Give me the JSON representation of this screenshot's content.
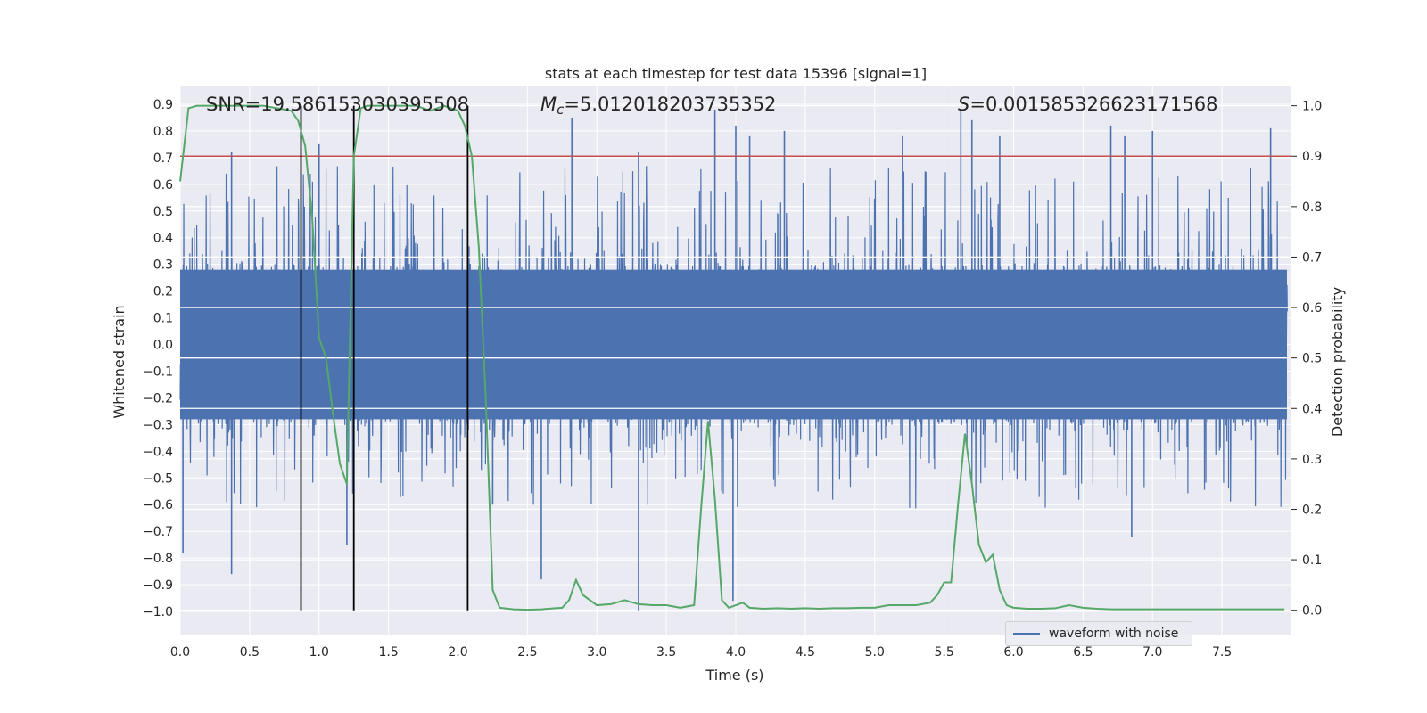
{
  "chart_data": {
    "type": "line",
    "title": "stats at each timestep for test data 15396 [signal=1]",
    "xlabel": "Time (s)",
    "ylabel_left": "Whitened strain",
    "ylabel_right": "Detection probability",
    "xlim": [
      0.0,
      8.0
    ],
    "ylim_left": [
      -1.09,
      0.97
    ],
    "ylim_right": [
      -0.05,
      1.04
    ],
    "x_ticks": [
      "0.0",
      "0.5",
      "1.0",
      "1.5",
      "2.0",
      "2.5",
      "3.0",
      "3.5",
      "4.0",
      "4.5",
      "5.0",
      "5.5",
      "6.0",
      "6.5",
      "7.0",
      "7.5"
    ],
    "y_left_ticks": [
      "0.9",
      "0.8",
      "0.7",
      "0.6",
      "0.5",
      "0.4",
      "0.3",
      "0.2",
      "0.1",
      "0.0",
      "−0.1",
      "−0.2",
      "−0.3",
      "−0.4",
      "−0.5",
      "−0.6",
      "−0.7",
      "−0.8",
      "−0.9",
      "−1.0"
    ],
    "y_right_ticks": [
      "1.0",
      "0.9",
      "0.8",
      "0.7",
      "0.6",
      "0.5",
      "0.4",
      "0.3",
      "0.2",
      "0.1",
      "0.0"
    ],
    "annotations": {
      "snr": "SNR=19.586153030395508",
      "mc_symbol": "M",
      "mc_sub": "c",
      "mc_value": "=5.012018203735352",
      "s_symbol": "S",
      "s_value": "=0.001585326623171568"
    },
    "threshold": {
      "value": 0.9,
      "axis": "right",
      "color": "#c44e52"
    },
    "vertical_lines": [
      0.87,
      1.25,
      2.07
    ],
    "legend": {
      "entries": [
        "waveform with noise"
      ],
      "placement": "lower-right"
    },
    "grid": true,
    "series": [
      {
        "name": "waveform with noise",
        "axis": "left",
        "color": "#4c72b0",
        "noise_envelope": {
          "core_lo": -0.3,
          "core_hi": 0.3,
          "typical_peak_hi": 0.55,
          "typical_peak_lo": -0.5
        },
        "extreme_spikes": [
          [
            0.02,
            -0.78
          ],
          [
            0.37,
            0.72
          ],
          [
            0.37,
            -0.86
          ],
          [
            1.0,
            0.75
          ],
          [
            1.2,
            -0.75
          ],
          [
            2.25,
            -0.6
          ],
          [
            2.6,
            -0.88
          ],
          [
            2.82,
            0.85
          ],
          [
            3.3,
            0.72
          ],
          [
            3.3,
            -1.0
          ],
          [
            3.85,
            0.88
          ],
          [
            3.98,
            -0.96
          ],
          [
            4.0,
            0.82
          ],
          [
            4.1,
            0.78
          ],
          [
            4.35,
            0.8
          ],
          [
            5.2,
            0.78
          ],
          [
            5.62,
            0.88
          ],
          [
            5.7,
            0.84
          ],
          [
            5.9,
            0.78
          ],
          [
            6.7,
            0.82
          ],
          [
            6.8,
            0.78
          ],
          [
            6.85,
            -0.72
          ],
          [
            7.0,
            0.8
          ],
          [
            7.85,
            0.81
          ]
        ]
      },
      {
        "name": "",
        "axis": "right",
        "color": "#55a868",
        "x": [
          0.0,
          0.06,
          0.12,
          0.2,
          0.3,
          0.4,
          0.5,
          0.6,
          0.7,
          0.8,
          0.85,
          0.9,
          0.95,
          1.0,
          1.05,
          1.1,
          1.15,
          1.2,
          1.25,
          1.3,
          1.35,
          1.4,
          1.5,
          1.6,
          1.7,
          1.8,
          1.9,
          2.0,
          2.05,
          2.1,
          2.15,
          2.2,
          2.25,
          2.3,
          2.4,
          2.5,
          2.6,
          2.7,
          2.75,
          2.8,
          2.85,
          2.9,
          3.0,
          3.1,
          3.2,
          3.3,
          3.4,
          3.5,
          3.6,
          3.7,
          3.75,
          3.8,
          3.85,
          3.9,
          3.95,
          4.0,
          4.05,
          4.1,
          4.2,
          4.3,
          4.4,
          4.5,
          4.6,
          4.7,
          4.8,
          4.9,
          5.0,
          5.1,
          5.2,
          5.3,
          5.4,
          5.45,
          5.5,
          5.55,
          5.6,
          5.65,
          5.7,
          5.75,
          5.8,
          5.85,
          5.9,
          5.95,
          6.0,
          6.1,
          6.2,
          6.3,
          6.4,
          6.5,
          6.6,
          6.7,
          6.8,
          6.9,
          7.0,
          7.2,
          7.4,
          7.6,
          7.8,
          7.95
        ],
        "y": [
          0.85,
          0.995,
          1.0,
          1.0,
          1.0,
          1.0,
          1.0,
          1.0,
          0.995,
          0.99,
          0.97,
          0.92,
          0.78,
          0.54,
          0.5,
          0.39,
          0.29,
          0.25,
          0.9,
          0.995,
          1.0,
          1.0,
          1.0,
          1.0,
          1.0,
          0.99,
          1.0,
          0.99,
          0.96,
          0.9,
          0.72,
          0.42,
          0.04,
          0.005,
          0.002,
          0.001,
          0.002,
          0.004,
          0.005,
          0.02,
          0.06,
          0.03,
          0.01,
          0.012,
          0.02,
          0.012,
          0.01,
          0.01,
          0.005,
          0.01,
          0.2,
          0.375,
          0.22,
          0.02,
          0.005,
          0.01,
          0.015,
          0.005,
          0.003,
          0.004,
          0.003,
          0.004,
          0.003,
          0.004,
          0.004,
          0.005,
          0.005,
          0.01,
          0.01,
          0.01,
          0.015,
          0.03,
          0.055,
          0.055,
          0.21,
          0.35,
          0.25,
          0.13,
          0.095,
          0.11,
          0.04,
          0.01,
          0.005,
          0.003,
          0.003,
          0.004,
          0.01,
          0.005,
          0.003,
          0.002,
          0.002,
          0.002,
          0.002,
          0.002,
          0.002,
          0.002,
          0.002,
          0.002
        ]
      }
    ]
  }
}
